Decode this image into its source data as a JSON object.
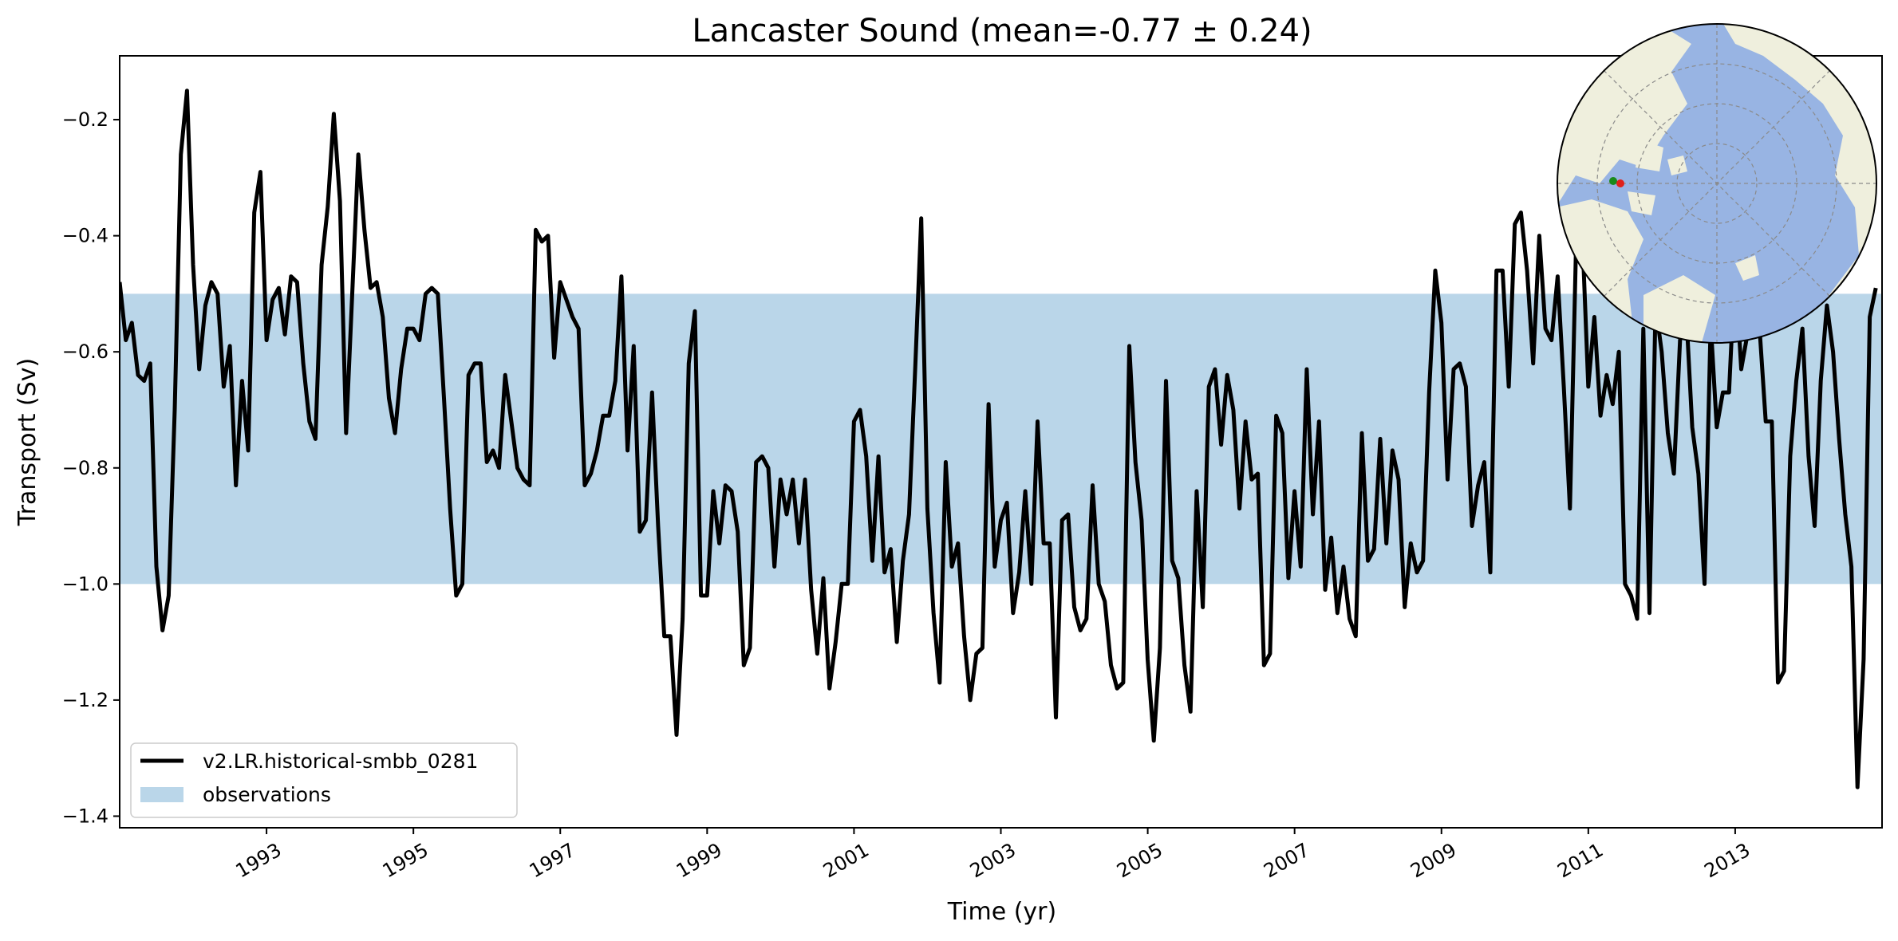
{
  "chart_data": {
    "type": "line",
    "title": "Lancaster Sound (mean=-0.77 ± 0.24)",
    "xlabel": "Time (yr)",
    "ylabel": "Transport (Sv)",
    "xlim": [
      1991.0,
      2015.0
    ],
    "ylim": [
      -1.42,
      -0.09
    ],
    "x_ticks": [
      1993,
      1995,
      1997,
      1999,
      2001,
      2003,
      2005,
      2007,
      2009,
      2011,
      2013
    ],
    "x_tick_labels": [
      "1993",
      "1995",
      "1997",
      "1999",
      "2001",
      "2003",
      "2005",
      "2007",
      "2009",
      "2011",
      "2013"
    ],
    "y_ticks": [
      -0.2,
      -0.4,
      -0.6,
      -0.8,
      -1.0,
      -1.2,
      -1.4
    ],
    "y_tick_labels": [
      "−0.2",
      "−0.4",
      "−0.6",
      "−0.8",
      "−1.0",
      "−1.2",
      "−1.4"
    ],
    "grid": false,
    "legend_position": "lower-left",
    "observations_band": {
      "name": "observations",
      "y_min": -1.0,
      "y_max": -0.5,
      "color": "#bad6e9"
    },
    "series": [
      {
        "name": "v2.LR.historical-smbb_0281",
        "color": "#000000",
        "monthly_start": 1991.0,
        "step": 0.08333,
        "values": [
          -0.48,
          -0.58,
          -0.55,
          -0.64,
          -0.65,
          -0.62,
          -0.97,
          -1.08,
          -1.02,
          -0.7,
          -0.26,
          -0.15,
          -0.45,
          -0.63,
          -0.52,
          -0.48,
          -0.5,
          -0.66,
          -0.59,
          -0.83,
          -0.65,
          -0.77,
          -0.36,
          -0.29,
          -0.58,
          -0.51,
          -0.49,
          -0.57,
          -0.47,
          -0.48,
          -0.62,
          -0.72,
          -0.75,
          -0.45,
          -0.35,
          -0.19,
          -0.34,
          -0.74,
          -0.5,
          -0.26,
          -0.39,
          -0.49,
          -0.48,
          -0.54,
          -0.68,
          -0.74,
          -0.63,
          -0.56,
          -0.56,
          -0.58,
          -0.5,
          -0.49,
          -0.5,
          -0.68,
          -0.87,
          -1.02,
          -1.0,
          -0.64,
          -0.62,
          -0.62,
          -0.79,
          -0.77,
          -0.8,
          -0.64,
          -0.72,
          -0.8,
          -0.82,
          -0.83,
          -0.39,
          -0.41,
          -0.4,
          -0.61,
          -0.48,
          -0.51,
          -0.54,
          -0.56,
          -0.83,
          -0.81,
          -0.77,
          -0.71,
          -0.71,
          -0.65,
          -0.47,
          -0.77,
          -0.59,
          -0.91,
          -0.89,
          -0.67,
          -0.9,
          -1.09,
          -1.09,
          -1.26,
          -1.06,
          -0.62,
          -0.53,
          -1.02,
          -1.02,
          -0.84,
          -0.93,
          -0.83,
          -0.84,
          -0.91,
          -1.14,
          -1.11,
          -0.79,
          -0.78,
          -0.8,
          -0.97,
          -0.82,
          -0.88,
          -0.82,
          -0.93,
          -0.82,
          -1.01,
          -1.12,
          -0.99,
          -1.18,
          -1.1,
          -1.0,
          -1.0,
          -0.72,
          -0.7,
          -0.78,
          -0.96,
          -0.78,
          -0.98,
          -0.94,
          -1.1,
          -0.96,
          -0.88,
          -0.63,
          -0.37,
          -0.87,
          -1.05,
          -1.17,
          -0.79,
          -0.97,
          -0.93,
          -1.09,
          -1.2,
          -1.12,
          -1.11,
          -0.69,
          -0.97,
          -0.89,
          -0.86,
          -1.05,
          -0.98,
          -0.84,
          -1.0,
          -0.72,
          -0.93,
          -0.93,
          -1.23,
          -0.89,
          -0.88,
          -1.04,
          -1.08,
          -1.06,
          -0.83,
          -1.0,
          -1.03,
          -1.14,
          -1.18,
          -1.17,
          -0.59,
          -0.79,
          -0.89,
          -1.13,
          -1.27,
          -1.11,
          -0.65,
          -0.96,
          -0.99,
          -1.14,
          -1.22,
          -0.84,
          -1.04,
          -0.66,
          -0.63,
          -0.76,
          -0.64,
          -0.7,
          -0.87,
          -0.72,
          -0.82,
          -0.81,
          -1.14,
          -1.12,
          -0.71,
          -0.74,
          -0.99,
          -0.84,
          -0.97,
          -0.63,
          -0.88,
          -0.72,
          -1.01,
          -0.92,
          -1.05,
          -0.97,
          -1.06,
          -1.09,
          -0.74,
          -0.96,
          -0.94,
          -0.75,
          -0.93,
          -0.77,
          -0.82,
          -1.04,
          -0.93,
          -0.98,
          -0.96,
          -0.67,
          -0.46,
          -0.55,
          -0.82,
          -0.63,
          -0.62,
          -0.66,
          -0.9,
          -0.83,
          -0.79,
          -0.98,
          -0.46,
          -0.46,
          -0.66,
          -0.38,
          -0.36,
          -0.46,
          -0.62,
          -0.4,
          -0.56,
          -0.58,
          -0.47,
          -0.66,
          -0.87,
          -0.42,
          -0.39,
          -0.66,
          -0.54,
          -0.71,
          -0.64,
          -0.69,
          -0.6,
          -1.0,
          -1.02,
          -1.06,
          -0.56,
          -1.05,
          -0.52,
          -0.6,
          -0.74,
          -0.81,
          -0.58,
          -0.53,
          -0.73,
          -0.81,
          -1.0,
          -0.55,
          -0.73,
          -0.67,
          -0.67,
          -0.45,
          -0.63,
          -0.57,
          -0.5,
          -0.56,
          -0.72,
          -0.72,
          -1.17,
          -1.15,
          -0.78,
          -0.65,
          -0.56,
          -0.78,
          -0.9,
          -0.65,
          -0.52,
          -0.6,
          -0.75,
          -0.88,
          -0.97,
          -1.35,
          -1.13,
          -0.54,
          -0.49
        ]
      }
    ]
  },
  "inset_map": {
    "description_icon": "arctic-polar-map",
    "ocean_color": "#98b4e3",
    "land_color": "#efefdd",
    "markers": [
      {
        "name": "section-start",
        "color": "#1a8a1a"
      },
      {
        "name": "section-end",
        "color": "#e0201a"
      }
    ]
  }
}
